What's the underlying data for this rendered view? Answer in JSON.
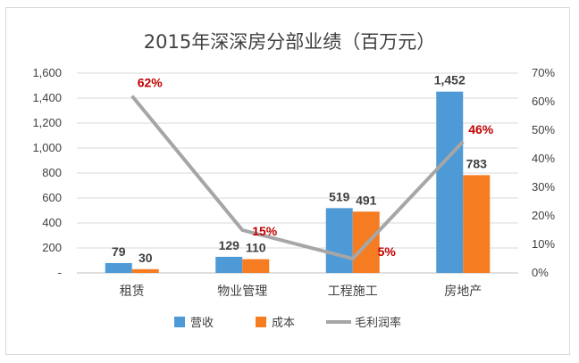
{
  "chart_data": {
    "type": "bar",
    "title": "2015年深深房分部业绩（百万元）",
    "categories": [
      "租赁",
      "物业管理",
      "工程施工",
      "房地产"
    ],
    "series": [
      {
        "name": "营收",
        "kind": "bar",
        "axis": "left",
        "color": "#4e9ad6",
        "values": [
          79,
          129,
          519,
          1452
        ],
        "labels": [
          "79",
          "129",
          "519",
          "1,452"
        ]
      },
      {
        "name": "成本",
        "kind": "bar",
        "axis": "left",
        "color": "#f57c20",
        "values": [
          30,
          110,
          491,
          783
        ],
        "labels": [
          "30",
          "110",
          "491",
          "783"
        ]
      },
      {
        "name": "毛利润率",
        "kind": "line",
        "axis": "right",
        "color": "#a6a6a6",
        "values": [
          62,
          15,
          5,
          46
        ],
        "labels": [
          "62%",
          "15%",
          "5%",
          "46%"
        ]
      }
    ],
    "y_left": {
      "range": [
        0,
        1600
      ],
      "ticks": [
        "-",
        "200",
        "400",
        "600",
        "800",
        "1,000",
        "1,200",
        "1,400",
        "1,600"
      ]
    },
    "y_right": {
      "range": [
        0,
        70
      ],
      "ticks": [
        "0%",
        "10%",
        "20%",
        "30%",
        "40%",
        "50%",
        "60%",
        "70%"
      ]
    },
    "legend": {
      "position": "bottom",
      "items": [
        "营收",
        "成本",
        "毛利润率"
      ]
    },
    "grid": true
  }
}
